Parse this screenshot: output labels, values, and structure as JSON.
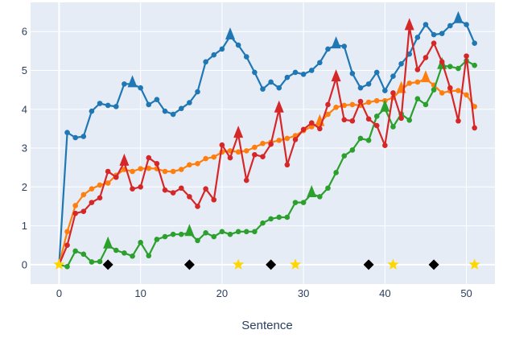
{
  "chart_data": {
    "type": "line",
    "xlabel": "Sentence",
    "ylabel": "",
    "xlim": [
      -3.5,
      53.5
    ],
    "ylim": [
      -0.5,
      6.75
    ],
    "x_ticks": [
      0,
      10,
      20,
      30,
      40,
      50
    ],
    "y_ticks": [
      0,
      1,
      2,
      3,
      4,
      5,
      6
    ],
    "grid": true,
    "legend": "none",
    "colors": {
      "background": "#e5ecf6",
      "grid": "#ffffff",
      "text": "#2a3f5f"
    },
    "series": [
      {
        "color": "#1f77b4",
        "values": [
          0,
          3.4,
          3.27,
          3.3,
          3.95,
          4.15,
          4.1,
          4.07,
          4.65,
          4.65,
          4.55,
          4.12,
          4.25,
          3.95,
          3.87,
          4.02,
          4.17,
          4.45,
          5.22,
          5.4,
          5.55,
          5.88,
          5.65,
          5.35,
          4.95,
          4.52,
          4.7,
          4.55,
          4.82,
          4.95,
          4.9,
          5.0,
          5.2,
          5.55,
          5.65,
          5.62,
          4.92,
          4.55,
          4.65,
          4.95,
          4.48,
          4.85,
          5.17,
          5.42,
          5.85,
          6.18,
          5.92,
          5.95,
          6.15,
          6.3,
          6.18,
          5.7
        ],
        "triangles": [
          9,
          21,
          34,
          49
        ]
      },
      {
        "color": "#ff7f0e",
        "values": [
          0,
          0.85,
          1.52,
          1.8,
          1.95,
          2.05,
          2.1,
          2.3,
          2.45,
          2.4,
          2.47,
          2.48,
          2.47,
          2.4,
          2.4,
          2.45,
          2.57,
          2.6,
          2.73,
          2.77,
          2.9,
          2.93,
          2.9,
          2.93,
          3.02,
          3.12,
          3.15,
          3.2,
          3.25,
          3.32,
          3.45,
          3.55,
          3.65,
          3.87,
          4.05,
          4.1,
          4.12,
          4.1,
          4.18,
          4.22,
          4.22,
          4.3,
          4.5,
          4.67,
          4.7,
          4.78,
          4.62,
          4.42,
          4.47,
          4.48,
          4.37,
          4.07
        ],
        "triangles": [
          32,
          42,
          45
        ]
      },
      {
        "color": "#2ca02c",
        "values": [
          0,
          -0.05,
          0.35,
          0.27,
          0.07,
          0.08,
          0.5,
          0.37,
          0.3,
          0.22,
          0.57,
          0.23,
          0.65,
          0.72,
          0.78,
          0.78,
          0.82,
          0.62,
          0.82,
          0.72,
          0.85,
          0.78,
          0.85,
          0.85,
          0.85,
          1.07,
          1.18,
          1.22,
          1.22,
          1.6,
          1.6,
          1.82,
          1.75,
          1.97,
          2.37,
          2.8,
          2.95,
          3.25,
          3.2,
          3.82,
          4.02,
          3.55,
          3.88,
          3.72,
          4.27,
          4.12,
          4.5,
          5.12,
          5.1,
          5.05,
          5.25,
          5.13
        ],
        "triangles": [
          6,
          16,
          31,
          40,
          47
        ]
      },
      {
        "color": "#d62728",
        "values": [
          0,
          0.5,
          1.32,
          1.37,
          1.6,
          1.72,
          2.4,
          2.25,
          2.63,
          1.95,
          2.0,
          2.75,
          2.6,
          1.92,
          1.85,
          1.97,
          1.75,
          1.5,
          1.95,
          1.67,
          3.08,
          2.75,
          3.35,
          2.17,
          2.83,
          2.78,
          3.1,
          4.0,
          2.57,
          3.22,
          3.48,
          3.65,
          3.5,
          4.12,
          4.8,
          3.73,
          3.7,
          4.2,
          3.75,
          3.58,
          3.07,
          4.42,
          3.77,
          6.12,
          5.02,
          5.33,
          5.7,
          5.22,
          4.55,
          3.7,
          5.37,
          3.52
        ],
        "triangles": [
          8,
          22,
          27,
          34,
          43
        ]
      }
    ],
    "markers": {
      "diamonds": {
        "color": "#000000",
        "x": [
          6,
          16,
          26,
          38,
          46
        ],
        "y": 0
      },
      "stars": {
        "color": "#ffd700",
        "x": [
          0,
          22,
          29,
          41,
          51
        ],
        "y": 0
      }
    }
  }
}
